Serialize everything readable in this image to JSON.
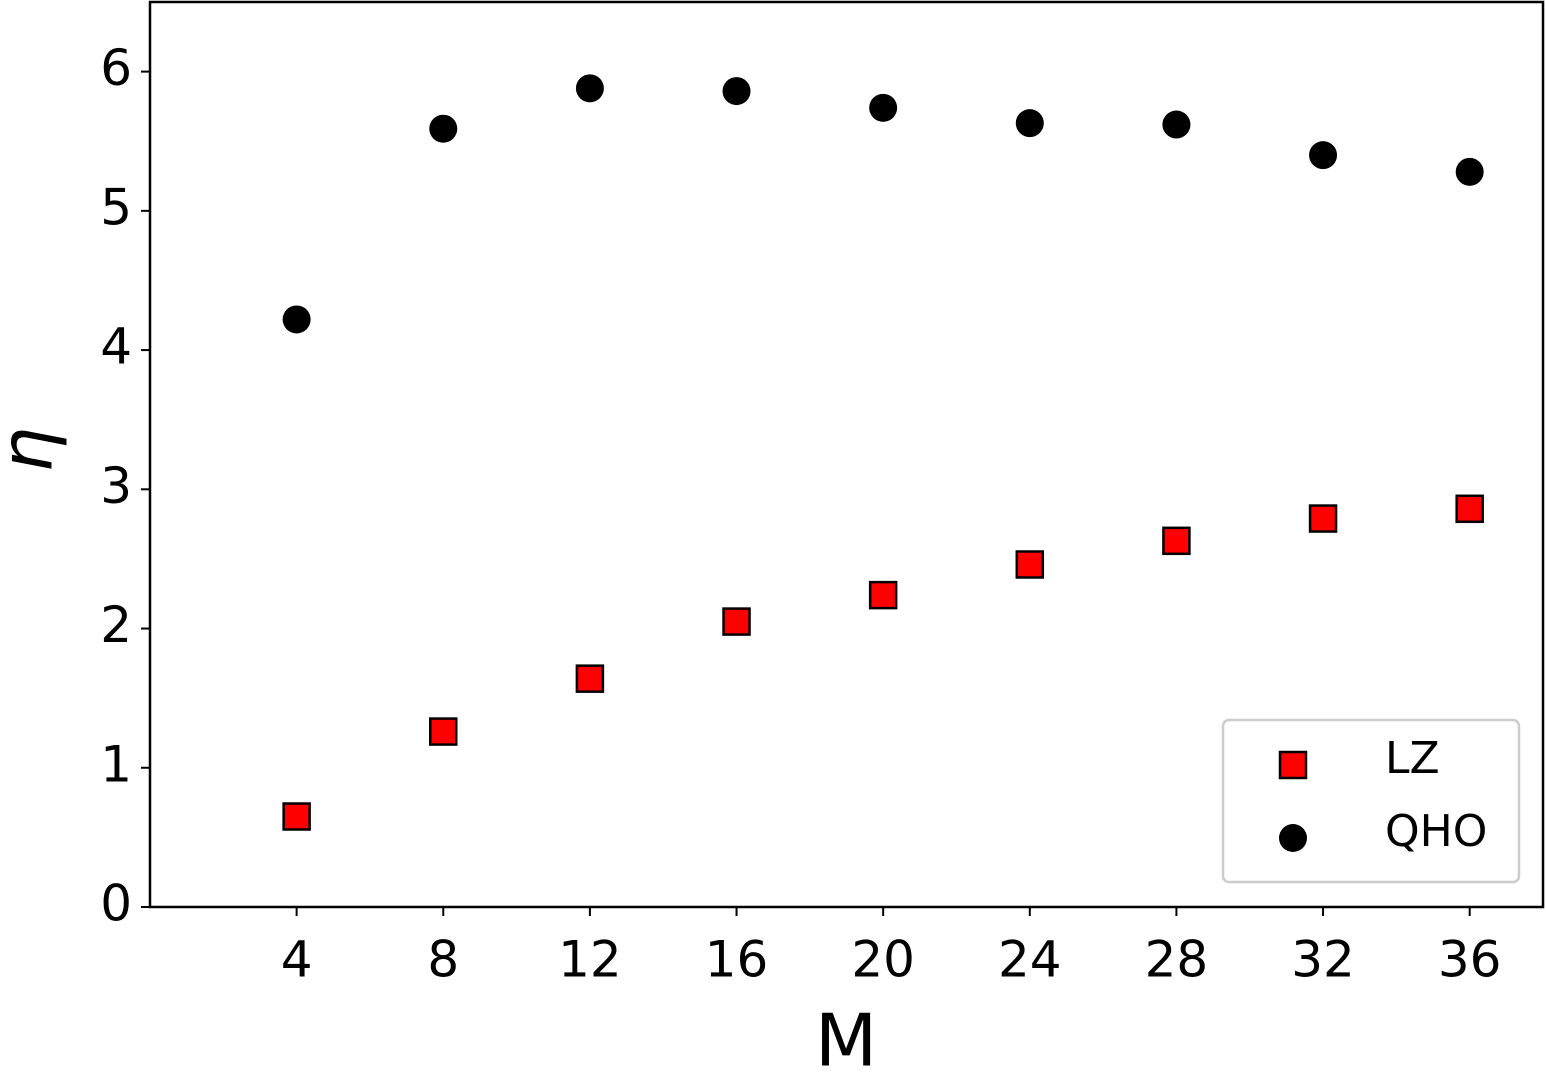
{
  "chart_data": {
    "type": "scatter",
    "x_label": "M",
    "y_label": "η",
    "x": [
      4,
      8,
      12,
      16,
      20,
      24,
      28,
      32,
      36
    ],
    "series": [
      {
        "name": "LZ",
        "color": "#ff0000",
        "marker": "square",
        "values": [
          0.65,
          1.26,
          1.64,
          2.05,
          2.24,
          2.46,
          2.63,
          2.79,
          2.86
        ]
      },
      {
        "name": "QHO",
        "color": "#000000",
        "marker": "circle",
        "values": [
          4.22,
          5.59,
          5.88,
          5.86,
          5.74,
          5.63,
          5.62,
          5.4,
          5.28
        ]
      }
    ],
    "xlim": [
      0,
      38
    ],
    "xticks": [
      4,
      8,
      12,
      16,
      20,
      24,
      28,
      32,
      36
    ],
    "ylim": [
      0,
      6.5
    ],
    "yticks": [
      0,
      1,
      2,
      3,
      4,
      5,
      6
    ],
    "grid": false,
    "legend": "lower right"
  }
}
